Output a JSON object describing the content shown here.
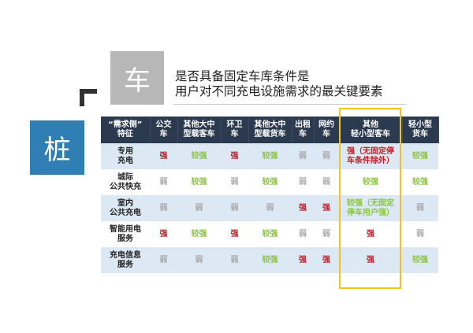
{
  "che_label": "车",
  "zhuang_label": "桩",
  "title": {
    "line1": "是否具备固定车库条件是",
    "line2": "用户对不同充电设施需求的最关键要素"
  },
  "colors": {
    "strong": "#c41e24",
    "medium": "#8cc63f",
    "weak": "#aaaaaa",
    "header": "#2c3a4f",
    "highlight": "#f3c21b"
  },
  "table": {
    "headers": [
      [
        "“需求侧”",
        "特征"
      ],
      [
        "公交",
        "车"
      ],
      [
        "其他大中",
        "型载客车"
      ],
      [
        "环卫",
        "车"
      ],
      [
        "其他大中",
        "型载货车"
      ],
      [
        "出租",
        "车"
      ],
      [
        "网约",
        "车"
      ],
      [
        "其他",
        "轻小型客车"
      ],
      [
        "轻小型",
        "货车"
      ]
    ],
    "rows": [
      {
        "feature": [
          "专用",
          "充电"
        ],
        "cells": [
          [
            "强",
            "s"
          ],
          [
            "较强",
            "m"
          ],
          [
            "强",
            "s"
          ],
          [
            "较强",
            "m"
          ],
          [
            "弱",
            "w"
          ],
          [
            "弱",
            "w"
          ],
          [
            "强（无固定停车条件除外）",
            "s"
          ],
          [
            "较强",
            "m"
          ]
        ]
      },
      {
        "feature": [
          "城际",
          "公共快充"
        ],
        "cells": [
          [
            "弱",
            "w"
          ],
          [
            "较强",
            "m"
          ],
          [
            "弱",
            "w"
          ],
          [
            "较强",
            "m"
          ],
          [
            "弱",
            "w"
          ],
          [
            "弱",
            "w"
          ],
          [
            "较强",
            "m"
          ],
          [
            "较强",
            "m"
          ]
        ]
      },
      {
        "feature": [
          "室内",
          "公共充电"
        ],
        "cells": [
          [
            "弱",
            "w"
          ],
          [
            "弱",
            "w"
          ],
          [
            "弱",
            "w"
          ],
          [
            "弱",
            "w"
          ],
          [
            "强",
            "s"
          ],
          [
            "强",
            "s"
          ],
          [
            "较强（无固定停车用户强）",
            "m"
          ],
          [
            "弱",
            "w"
          ]
        ]
      },
      {
        "feature": [
          "智能用电",
          "服务"
        ],
        "cells": [
          [
            "强",
            "s"
          ],
          [
            "较强",
            "m"
          ],
          [
            "强",
            "s"
          ],
          [
            "较强",
            "m"
          ],
          [
            "弱",
            "w"
          ],
          [
            "弱",
            "w"
          ],
          [
            "强",
            "s"
          ],
          [
            "弱",
            "w"
          ]
        ]
      },
      {
        "feature": [
          "充电信息",
          "服务"
        ],
        "cells": [
          [
            "弱",
            "w"
          ],
          [
            "弱",
            "w"
          ],
          [
            "弱",
            "w"
          ],
          [
            "较强",
            "m"
          ],
          [
            "强",
            "s"
          ],
          [
            "强",
            "s"
          ],
          [
            "强",
            "s"
          ],
          [
            "较强",
            "m"
          ]
        ]
      }
    ]
  }
}
